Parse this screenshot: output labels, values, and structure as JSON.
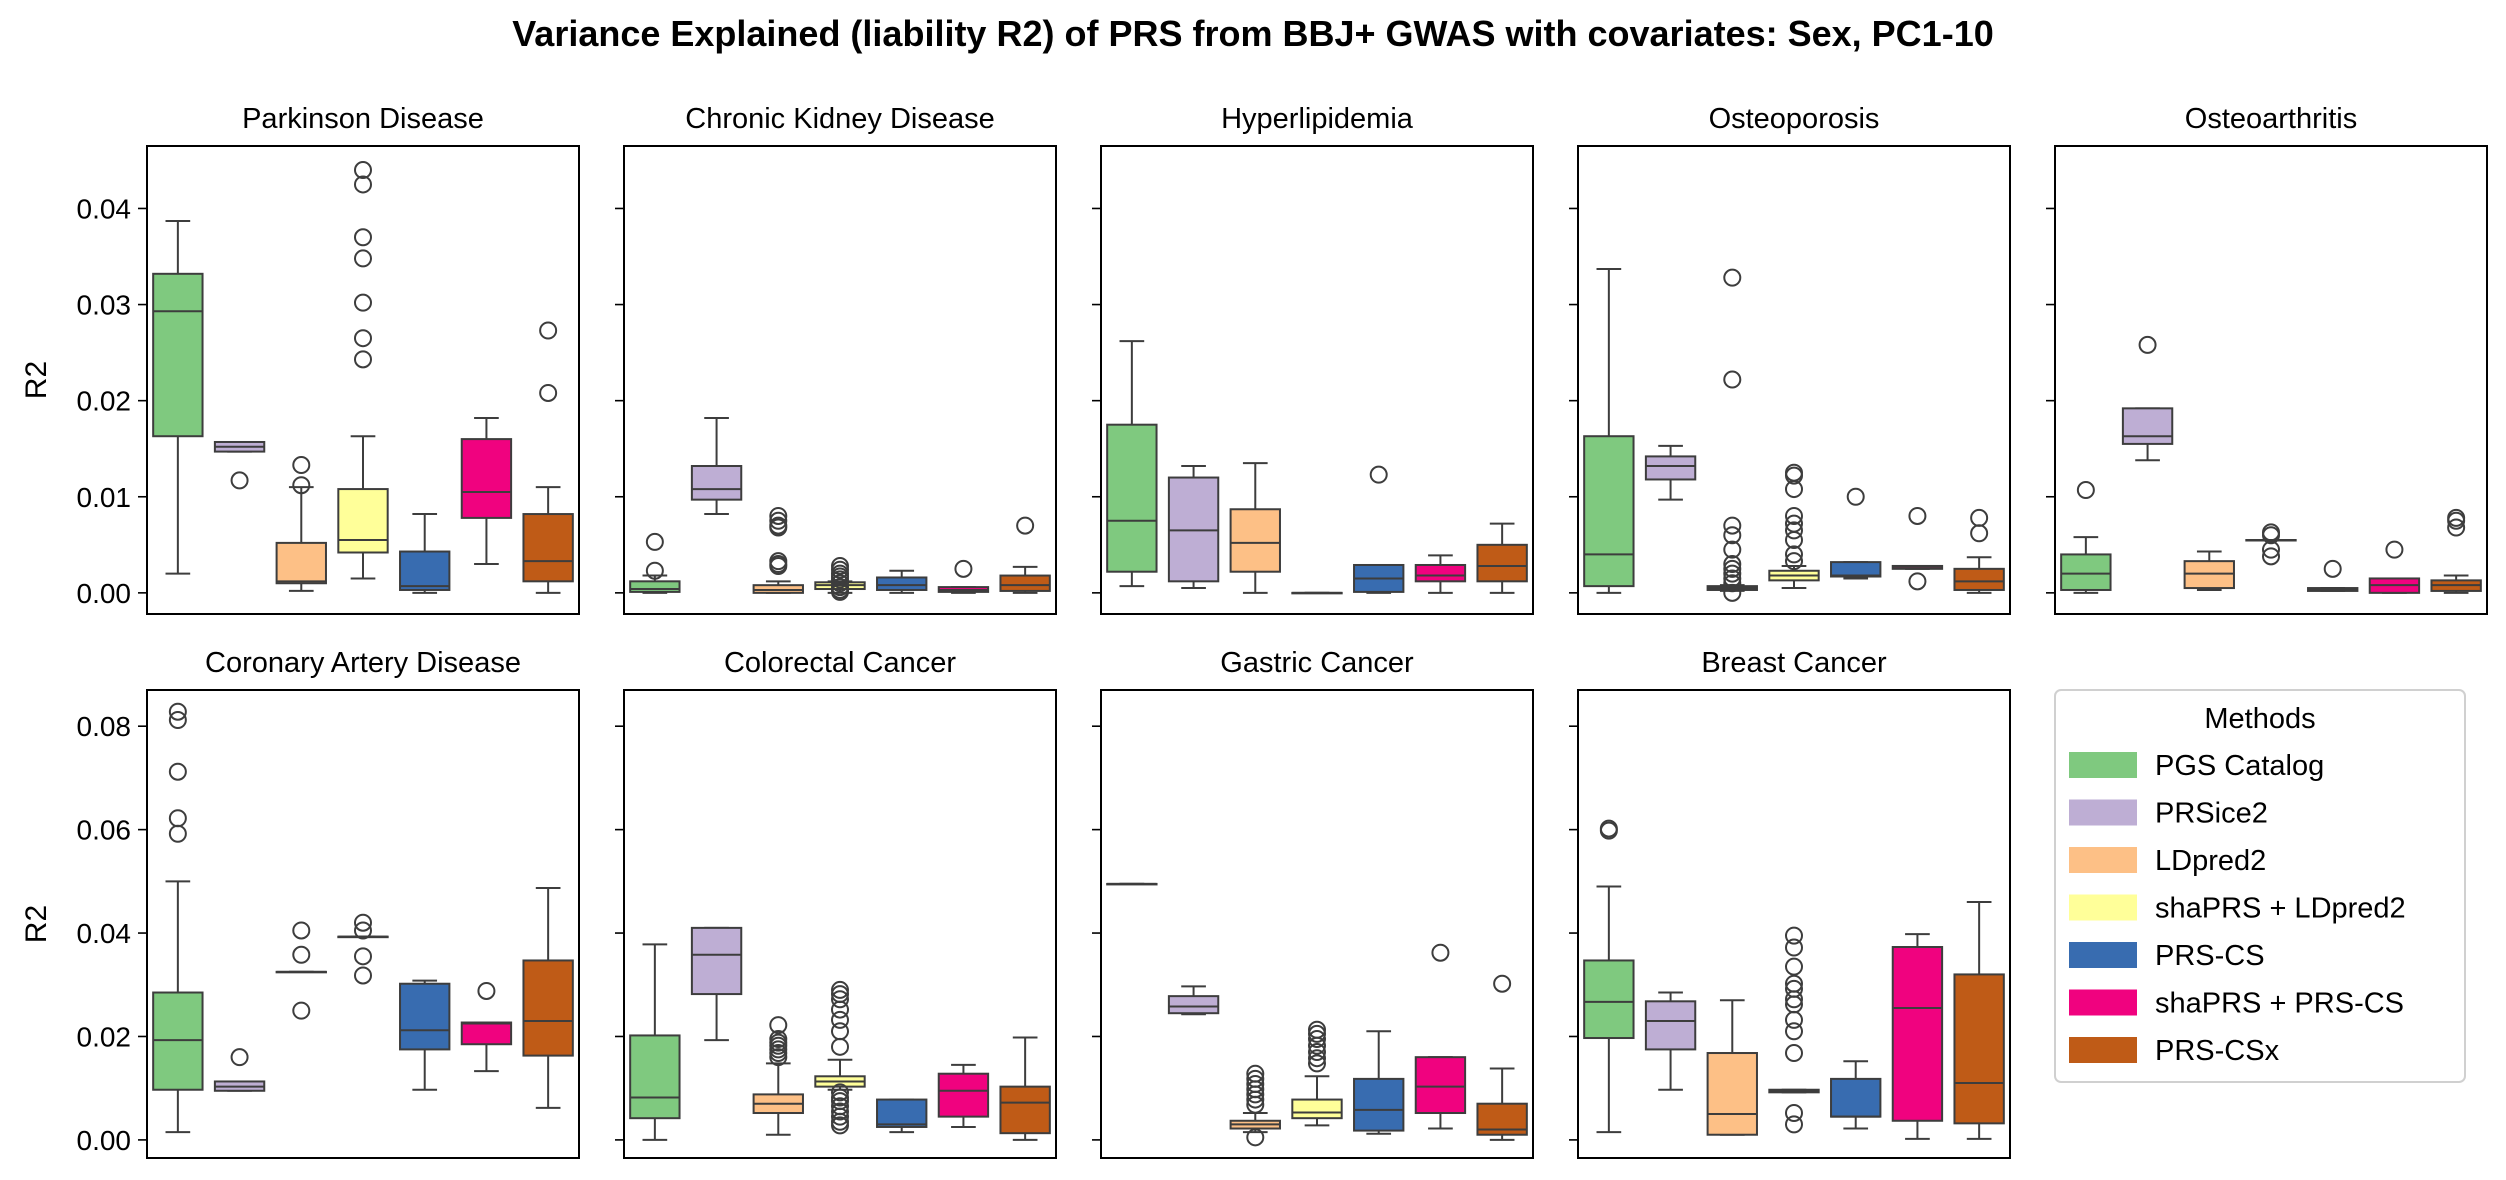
{
  "title": "Variance Explained (liability R2) of PRS from BBJ+ GWAS with covariates: Sex, PC1-10",
  "ylabel": "R2",
  "legend": {
    "title": "Methods",
    "placement": "bottom-right",
    "items": [
      {
        "label": "PGS Catalog",
        "color": "#7fc97f"
      },
      {
        "label": "PRSice2",
        "color": "#beaed4"
      },
      {
        "label": "LDpred2",
        "color": "#fdc086"
      },
      {
        "label": "shaPRS + LDpred2",
        "color": "#ffff99"
      },
      {
        "label": "PRS-CS",
        "color": "#386cb0"
      },
      {
        "label": "shaPRS + PRS-CS",
        "color": "#f0027f"
      },
      {
        "label": "PRS-CSx",
        "color": "#bf5b17"
      }
    ]
  },
  "rows": [
    {
      "yticks": [
        "0.00",
        "0.01",
        "0.02",
        "0.03",
        "0.04"
      ],
      "tick_values": [
        0,
        0.01,
        0.02,
        0.03,
        0.04
      ],
      "ylim": [
        -0.0022,
        0.0465
      ]
    },
    {
      "yticks": [
        "0.00",
        "0.02",
        "0.04",
        "0.06",
        "0.08"
      ],
      "tick_values": [
        0,
        0.02,
        0.04,
        0.06,
        0.08
      ],
      "ylim": [
        -0.0035,
        0.087
      ]
    }
  ],
  "chart_data": {
    "type": "box",
    "grid": false,
    "sharey": "row",
    "methods": [
      "PGS Catalog",
      "PRSice2",
      "LDpred2",
      "shaPRS + LDpred2",
      "PRS-CS",
      "shaPRS + PRS-CS",
      "PRS-CSx"
    ],
    "panels": [
      {
        "title": "Parkinson Disease",
        "row": 0,
        "col": 0,
        "boxes": [
          {
            "min": 0.002,
            "q1": 0.0163,
            "median": 0.0293,
            "q3": 0.0332,
            "max": 0.0387,
            "outliers": []
          },
          {
            "min": 0.0147,
            "q1": 0.0147,
            "median": 0.0152,
            "q3": 0.0157,
            "max": 0.0157,
            "outliers": [
              0.0117
            ]
          },
          {
            "min": 0.0002,
            "q1": 0.001,
            "median": 0.0012,
            "q3": 0.0052,
            "max": 0.011,
            "outliers": [
              0.0133,
              0.0112
            ]
          },
          {
            "min": 0.0015,
            "q1": 0.0042,
            "median": 0.0055,
            "q3": 0.0108,
            "max": 0.0163,
            "outliers": [
              0.044,
              0.0425,
              0.037,
              0.0348,
              0.0302,
              0.0265,
              0.0243
            ]
          },
          {
            "min": 0.0,
            "q1": 0.0003,
            "median": 0.0007,
            "q3": 0.0043,
            "max": 0.0082,
            "outliers": []
          },
          {
            "min": 0.003,
            "q1": 0.0078,
            "median": 0.0105,
            "q3": 0.016,
            "max": 0.0182,
            "outliers": []
          },
          {
            "min": 0.0,
            "q1": 0.0012,
            "median": 0.0033,
            "q3": 0.0082,
            "max": 0.011,
            "outliers": [
              0.0273,
              0.0208
            ]
          }
        ]
      },
      {
        "title": "Chronic Kidney Disease",
        "row": 0,
        "col": 1,
        "boxes": [
          {
            "min": 0.0,
            "q1": 0.0001,
            "median": 0.0004,
            "q3": 0.0012,
            "max": 0.0018,
            "outliers": [
              0.0053,
              0.0023
            ]
          },
          {
            "min": 0.0082,
            "q1": 0.0097,
            "median": 0.0108,
            "q3": 0.0132,
            "max": 0.0182,
            "outliers": []
          },
          {
            "min": 0.0,
            "q1": 0.0,
            "median": 0.0003,
            "q3": 0.0008,
            "max": 0.0012,
            "outliers": [
              0.008,
              0.0075,
              0.007,
              0.0068,
              0.0033,
              0.003,
              0.0028
            ]
          },
          {
            "min": 0.0,
            "q1": 0.0004,
            "median": 0.0008,
            "q3": 0.0011,
            "max": 0.0012,
            "outliers": [
              0.0028,
              0.0024,
              0.002,
              0.0017,
              0.0014,
              0.001,
              0.0006,
              0.0003,
              0.0001
            ]
          },
          {
            "min": 0.0,
            "q1": 0.0003,
            "median": 0.0008,
            "q3": 0.0016,
            "max": 0.0023,
            "outliers": []
          },
          {
            "min": 0.0,
            "q1": 0.0001,
            "median": 0.0003,
            "q3": 0.0006,
            "max": 0.0006,
            "outliers": [
              0.0025
            ]
          },
          {
            "min": 0.0,
            "q1": 0.0002,
            "median": 0.0008,
            "q3": 0.0018,
            "max": 0.0027,
            "outliers": [
              0.007
            ]
          }
        ]
      },
      {
        "title": "Hyperlipidemia",
        "row": 0,
        "col": 2,
        "boxes": [
          {
            "min": 0.0007,
            "q1": 0.0022,
            "median": 0.0075,
            "q3": 0.0175,
            "max": 0.0262,
            "outliers": []
          },
          {
            "min": 0.0005,
            "q1": 0.0012,
            "median": 0.0065,
            "q3": 0.012,
            "max": 0.0132,
            "outliers": []
          },
          {
            "min": 0.0,
            "q1": 0.0022,
            "median": 0.0052,
            "q3": 0.0087,
            "max": 0.0135,
            "outliers": []
          },
          {
            "min": 0.0,
            "q1": 0.0,
            "median": 0.0,
            "q3": 0.0,
            "max": 0.0,
            "outliers": []
          },
          {
            "min": 0.0,
            "q1": 0.0001,
            "median": 0.0015,
            "q3": 0.0029,
            "max": 0.0029,
            "outliers": [
              0.0123
            ]
          },
          {
            "min": 0.0,
            "q1": 0.0012,
            "median": 0.0018,
            "q3": 0.0029,
            "max": 0.0039,
            "outliers": []
          },
          {
            "min": 0.0,
            "q1": 0.0012,
            "median": 0.0028,
            "q3": 0.005,
            "max": 0.0072,
            "outliers": []
          }
        ]
      },
      {
        "title": "Osteoporosis",
        "row": 0,
        "col": 3,
        "boxes": [
          {
            "min": 0.0,
            "q1": 0.0007,
            "median": 0.004,
            "q3": 0.0163,
            "max": 0.0337,
            "outliers": []
          },
          {
            "min": 0.0097,
            "q1": 0.0118,
            "median": 0.0132,
            "q3": 0.0142,
            "max": 0.0153,
            "outliers": []
          },
          {
            "min": 0.0002,
            "q1": 0.0003,
            "median": 0.0005,
            "q3": 0.0007,
            "max": 0.0008,
            "outliers": [
              0.0328,
              0.0222,
              0.007,
              0.006,
              0.0045,
              0.003,
              0.0025,
              0.002,
              0.0015,
              0.001,
              0.0
            ]
          },
          {
            "min": 0.0005,
            "q1": 0.0013,
            "median": 0.0018,
            "q3": 0.0023,
            "max": 0.0028,
            "outliers": [
              0.0125,
              0.0122,
              0.0108,
              0.008,
              0.0072,
              0.0065,
              0.0055,
              0.004,
              0.0033
            ]
          },
          {
            "min": 0.0015,
            "q1": 0.0017,
            "median": 0.0018,
            "q3": 0.0032,
            "max": 0.0032,
            "outliers": [
              0.01
            ]
          },
          {
            "min": 0.0025,
            "q1": 0.0025,
            "median": 0.0027,
            "q3": 0.0028,
            "max": 0.0028,
            "outliers": [
              0.008,
              0.0012
            ]
          },
          {
            "min": 0.0,
            "q1": 0.0003,
            "median": 0.0012,
            "q3": 0.0025,
            "max": 0.0037,
            "outliers": [
              0.0078,
              0.0062
            ]
          }
        ]
      },
      {
        "title": "Osteoarthritis",
        "row": 0,
        "col": 4,
        "boxes": [
          {
            "min": 0.0,
            "q1": 0.0003,
            "median": 0.002,
            "q3": 0.004,
            "max": 0.0058,
            "outliers": [
              0.0107
            ]
          },
          {
            "min": 0.0138,
            "q1": 0.0155,
            "median": 0.0163,
            "q3": 0.0192,
            "max": 0.0192,
            "outliers": [
              0.0258
            ]
          },
          {
            "min": 0.0003,
            "q1": 0.0005,
            "median": 0.002,
            "q3": 0.0033,
            "max": 0.0043,
            "outliers": []
          },
          {
            "min": 0.0055,
            "q1": 0.0055,
            "median": 0.0055,
            "q3": 0.0055,
            "max": 0.0055,
            "outliers": [
              0.0063,
              0.006,
              0.0045,
              0.0038
            ]
          },
          {
            "min": 0.0002,
            "q1": 0.0002,
            "median": 0.0003,
            "q3": 0.0005,
            "max": 0.0005,
            "outliers": [
              0.0025
            ]
          },
          {
            "min": 0.0,
            "q1": 0.0,
            "median": 0.0008,
            "q3": 0.0015,
            "max": 0.0015,
            "outliers": [
              0.0045
            ]
          },
          {
            "min": 0.0,
            "q1": 0.0002,
            "median": 0.0008,
            "q3": 0.0013,
            "max": 0.0018,
            "outliers": [
              0.0078,
              0.0075,
              0.0068
            ]
          }
        ]
      },
      {
        "title": "Coronary Artery Disease",
        "row": 1,
        "col": 0,
        "boxes": [
          {
            "min": 0.0015,
            "q1": 0.0097,
            "median": 0.0193,
            "q3": 0.0285,
            "max": 0.05,
            "outliers": [
              0.0828,
              0.0812,
              0.0712,
              0.0622,
              0.0592
            ]
          },
          {
            "min": 0.0095,
            "q1": 0.0095,
            "median": 0.0103,
            "q3": 0.0113,
            "max": 0.0113,
            "outliers": [
              0.016
            ]
          },
          {
            "min": 0.0325,
            "q1": 0.0325,
            "median": 0.0325,
            "q3": 0.0325,
            "max": 0.0325,
            "outliers": [
              0.0405,
              0.0358,
              0.025
            ]
          },
          {
            "min": 0.0393,
            "q1": 0.0393,
            "median": 0.0393,
            "q3": 0.0393,
            "max": 0.0393,
            "outliers": [
              0.042,
              0.0405,
              0.0355,
              0.0318
            ]
          },
          {
            "min": 0.0097,
            "q1": 0.0175,
            "median": 0.0212,
            "q3": 0.0302,
            "max": 0.0308,
            "outliers": []
          },
          {
            "min": 0.0133,
            "q1": 0.0185,
            "median": 0.0225,
            "q3": 0.0227,
            "max": 0.0227,
            "outliers": [
              0.0288
            ]
          },
          {
            "min": 0.0062,
            "q1": 0.0163,
            "median": 0.023,
            "q3": 0.0347,
            "max": 0.0487,
            "outliers": []
          }
        ]
      },
      {
        "title": "Colorectal Cancer",
        "row": 1,
        "col": 1,
        "boxes": [
          {
            "min": 0.0,
            "q1": 0.0042,
            "median": 0.0082,
            "q3": 0.0202,
            "max": 0.0378,
            "outliers": []
          },
          {
            "min": 0.0193,
            "q1": 0.0282,
            "median": 0.0358,
            "q3": 0.041,
            "max": 0.041,
            "outliers": []
          },
          {
            "min": 0.001,
            "q1": 0.0052,
            "median": 0.007,
            "q3": 0.0088,
            "max": 0.0148,
            "outliers": [
              0.0222,
              0.0195,
              0.0188,
              0.0182,
              0.0175,
              0.0168,
              0.016
            ]
          },
          {
            "min": 0.0097,
            "q1": 0.0103,
            "median": 0.0113,
            "q3": 0.0123,
            "max": 0.0155,
            "outliers": [
              0.029,
              0.0282,
              0.0272,
              0.0252,
              0.0232,
              0.021,
              0.018,
              0.0092,
              0.0082,
              0.0075,
              0.0065,
              0.0055,
              0.0045,
              0.0035,
              0.0028
            ]
          },
          {
            "min": 0.0015,
            "q1": 0.0025,
            "median": 0.003,
            "q3": 0.0078,
            "max": 0.0078,
            "outliers": []
          },
          {
            "min": 0.0025,
            "q1": 0.0045,
            "median": 0.0095,
            "q3": 0.0128,
            "max": 0.0145,
            "outliers": []
          },
          {
            "min": 0.0,
            "q1": 0.0013,
            "median": 0.0072,
            "q3": 0.0103,
            "max": 0.0198,
            "outliers": []
          }
        ]
      },
      {
        "title": "Gastric Cancer",
        "row": 1,
        "col": 2,
        "boxes": [
          {
            "min": 0.0495,
            "q1": 0.0495,
            "median": 0.0495,
            "q3": 0.0495,
            "max": 0.0495,
            "outliers": []
          },
          {
            "min": 0.0243,
            "q1": 0.0245,
            "median": 0.0258,
            "q3": 0.0278,
            "max": 0.0297,
            "outliers": []
          },
          {
            "min": 0.0015,
            "q1": 0.0022,
            "median": 0.003,
            "q3": 0.0037,
            "max": 0.0052,
            "outliers": [
              0.0128,
              0.0118,
              0.0108,
              0.0098,
              0.0088,
              0.0078,
              0.0068,
              0.0005
            ]
          },
          {
            "min": 0.0028,
            "q1": 0.0042,
            "median": 0.0053,
            "q3": 0.0078,
            "max": 0.0123,
            "outliers": [
              0.0213,
              0.0205,
              0.0195,
              0.0182,
              0.017,
              0.0158,
              0.0148
            ]
          },
          {
            "min": 0.0012,
            "q1": 0.0018,
            "median": 0.0058,
            "q3": 0.0118,
            "max": 0.021,
            "outliers": []
          },
          {
            "min": 0.0022,
            "q1": 0.0052,
            "median": 0.0103,
            "q3": 0.016,
            "max": 0.016,
            "outliers": [
              0.0362
            ]
          },
          {
            "min": 0.0,
            "q1": 0.001,
            "median": 0.002,
            "q3": 0.007,
            "max": 0.0138,
            "outliers": [
              0.0302
            ]
          }
        ]
      },
      {
        "title": "Breast Cancer",
        "row": 1,
        "col": 3,
        "boxes": [
          {
            "min": 0.0015,
            "q1": 0.0197,
            "median": 0.0267,
            "q3": 0.0347,
            "max": 0.049,
            "outliers": [
              0.0602,
              0.0598
            ]
          },
          {
            "min": 0.0097,
            "q1": 0.0175,
            "median": 0.023,
            "q3": 0.0268,
            "max": 0.0285,
            "outliers": []
          },
          {
            "min": 0.001,
            "q1": 0.001,
            "median": 0.005,
            "q3": 0.0168,
            "max": 0.027,
            "outliers": []
          },
          {
            "min": 0.0092,
            "q1": 0.0092,
            "median": 0.0095,
            "q3": 0.0097,
            "max": 0.0097,
            "outliers": [
              0.0395,
              0.0372,
              0.0335,
              0.0302,
              0.0292,
              0.0272,
              0.0262,
              0.0232,
              0.021,
              0.0168,
              0.0052,
              0.003
            ]
          },
          {
            "min": 0.0022,
            "q1": 0.0045,
            "median": 0.0045,
            "q3": 0.0118,
            "max": 0.0152,
            "outliers": []
          },
          {
            "min": 0.0002,
            "q1": 0.0037,
            "median": 0.0255,
            "q3": 0.0373,
            "max": 0.0398,
            "outliers": []
          },
          {
            "min": 0.0002,
            "q1": 0.0032,
            "median": 0.011,
            "q3": 0.032,
            "max": 0.046,
            "outliers": []
          }
        ]
      }
    ]
  }
}
